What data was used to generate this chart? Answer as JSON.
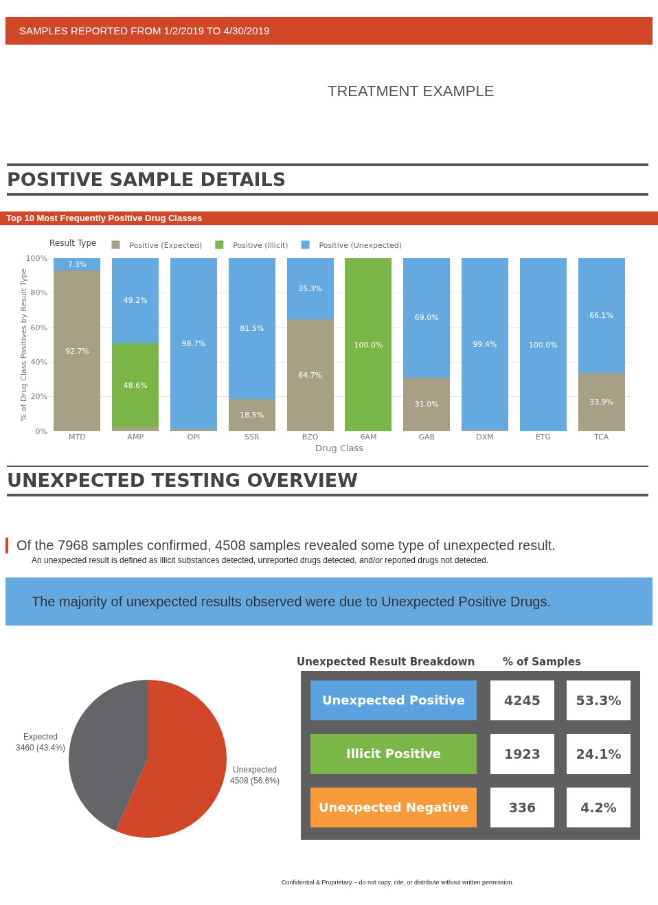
{
  "chart_data": [
    {
      "type": "other",
      "title": "POSITIVE SAMPLE DETAILS",
      "annotations": [
        "SAMPLES REPORTED FROM 1/2/2019 TO 4/30/2019",
        "TREATMENT EXAMPLE"
      ]
    },
    {
      "type": "bar",
      "title": "Top 10 Most Frequently Positive Drug Classes",
      "xlabel": "Drug Class",
      "ylabel": "% of Drug Class Positives by Result Type",
      "legend_title": "Result Type",
      "legend": "top left",
      "stacked": true,
      "grid": "y",
      "categories": [
        "MTD",
        "AMP",
        "OPI",
        "SSR",
        "BZO",
        "6AM",
        "GAB",
        "DXM",
        "ETG",
        "TCA"
      ],
      "ylim": [
        0,
        100
      ],
      "yticks": [
        {
          "value": 0,
          "label": "0%"
        },
        {
          "value": 20,
          "label": "20%"
        },
        {
          "value": 40,
          "label": "40%"
        },
        {
          "value": 60,
          "label": "60%"
        },
        {
          "value": 80,
          "label": "80%"
        },
        {
          "value": 100,
          "label": "100%"
        }
      ],
      "series": [
        {
          "name": "Positive (Expected)",
          "color": "#a8a085",
          "values": [
            92.7,
            2.2,
            1.3,
            18.5,
            64.7,
            0,
            31.0,
            0.6,
            0,
            33.9
          ],
          "value_labels": [
            "92.7%",
            null,
            null,
            "18.5%",
            "64.7%",
            null,
            "31.0%",
            null,
            null,
            "33.9%"
          ]
        },
        {
          "name": "Positive (Illicit)",
          "color": "#7ab648",
          "values": [
            0,
            48.6,
            0,
            0,
            0,
            100.0,
            0,
            0,
            0,
            0
          ],
          "value_labels": [
            null,
            "48.6%",
            null,
            null,
            null,
            "100.0%",
            null,
            null,
            null,
            null
          ]
        },
        {
          "name": "Positive (Unexpected)",
          "color": "#64aae0",
          "values": [
            7.3,
            49.2,
            98.7,
            81.5,
            35.3,
            0,
            69.0,
            99.4,
            100.0,
            66.1
          ],
          "value_labels": [
            "7.3%",
            "49.2%",
            "98.7%",
            "81.5%",
            "35.3%",
            null,
            "69.0%",
            "99.4%",
            "100.0%",
            "66.1%"
          ]
        }
      ]
    },
    {
      "type": "other",
      "title": "UNEXPECTED TESTING OVERVIEW",
      "annotations": [
        "Of the 7968 samples confirmed, 4508 samples revealed some type of unexpected result.",
        "An unexpected result is defined as illicit substances detected, unreported drugs detected, and/or reported drugs not detected.",
        "The majority of unexpected results observed were due to Unexpected Positive Drugs."
      ]
    },
    {
      "type": "pie",
      "categories": [
        "Unexpected",
        "Expected"
      ],
      "values": [
        4508,
        3460
      ],
      "colors": [
        "#d04627",
        "#646469"
      ],
      "value_labels": [
        "4508 (56.6%)",
        "3460 (43.4%)"
      ]
    },
    {
      "type": "other",
      "title": "Unexpected Result Breakdown",
      "data_labels": true,
      "categories": [
        "Unexpected Positive",
        "Illicit Positive",
        "Unexpected Negative"
      ],
      "colors": [
        "#5ba3e0",
        "#7ab648",
        "#f79a3a"
      ],
      "series": [
        {
          "values": [
            4245,
            1923,
            336
          ]
        },
        {
          "name": "% of Samples",
          "values": [
            53.3,
            24.1,
            4.2
          ],
          "value_labels": [
            "53.3%",
            "24.1%",
            "4.2%"
          ]
        }
      ],
      "annotations": [
        "Confidential & Proprietary – do not copy, cite, or distribute without written permission."
      ]
    }
  ]
}
